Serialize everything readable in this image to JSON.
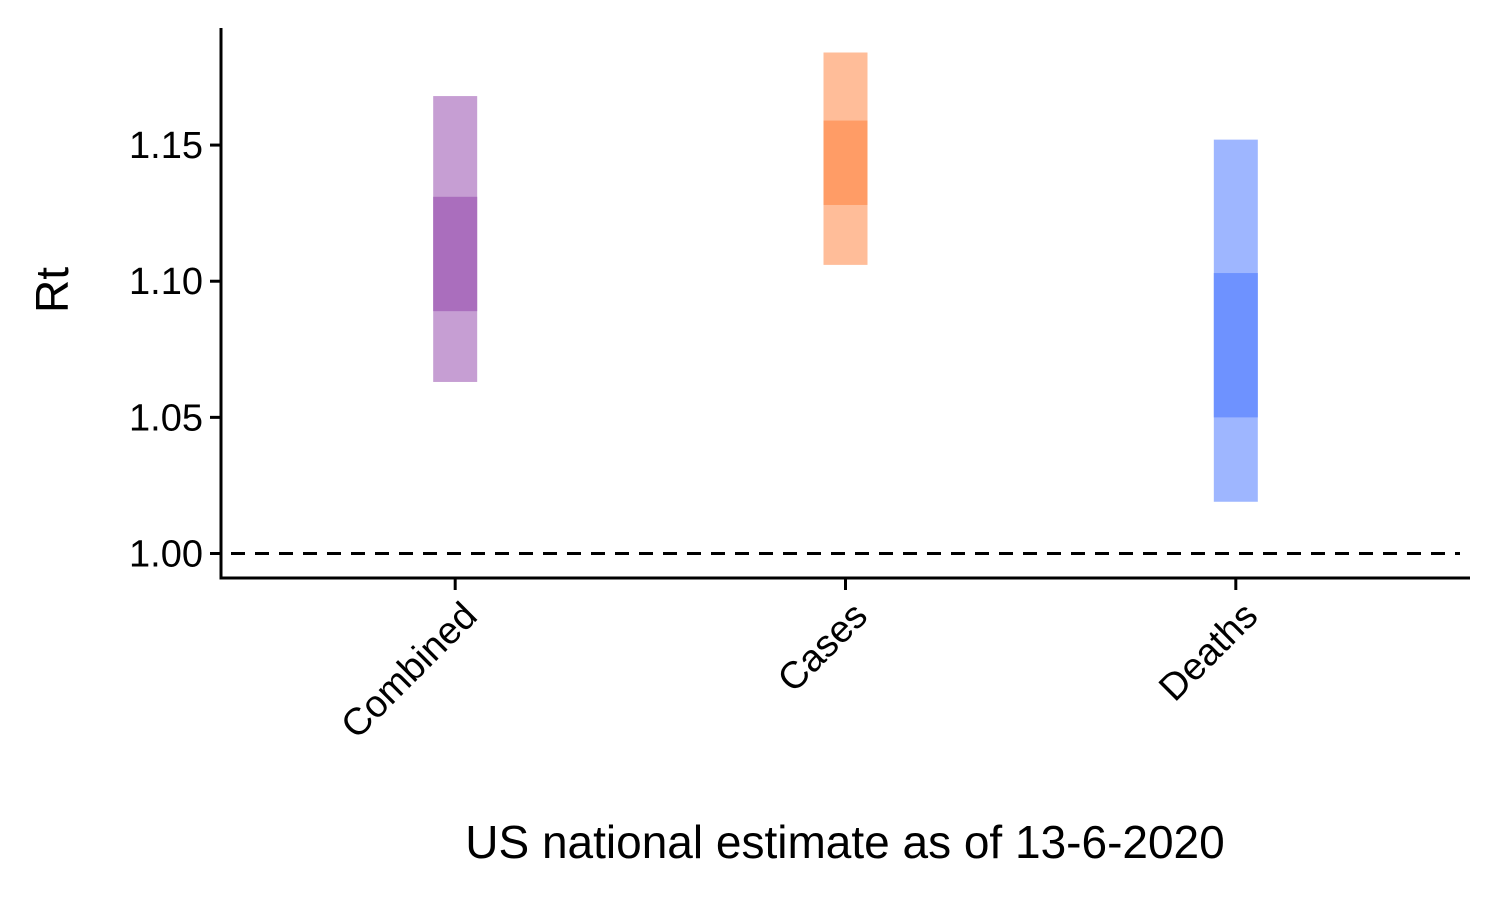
{
  "chart_data": {
    "type": "interval",
    "categories": [
      "Combined",
      "Cases",
      "Deaths"
    ],
    "series": [
      {
        "category": "Combined",
        "color": "#a05eb5",
        "outer": [
          1.063,
          1.168
        ],
        "inner": [
          1.089,
          1.131
        ]
      },
      {
        "category": "Cases",
        "color": "#ff9155",
        "outer": [
          1.106,
          1.184
        ],
        "inner": [
          1.128,
          1.159
        ]
      },
      {
        "category": "Deaths",
        "color": "#5e86ff",
        "outer": [
          1.019,
          1.152
        ],
        "inner": [
          1.05,
          1.103
        ]
      }
    ],
    "xlabel": "US national estimate as of 13-6-2020",
    "ylabel": "Rt",
    "yticks": [
      "1.00",
      "1.05",
      "1.10",
      "1.15"
    ],
    "ylim": [
      0.991,
      1.193
    ],
    "reference_line": 1.0,
    "grid": false,
    "legend": "none"
  }
}
